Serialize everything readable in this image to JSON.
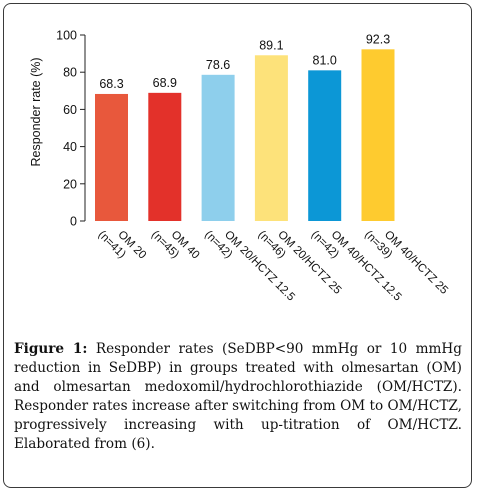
{
  "chart_data": {
    "type": "bar",
    "categories": [
      [
        "OM 20",
        "(n=41)"
      ],
      [
        "OM 40",
        "(n=45)"
      ],
      [
        "OM 20/HCTZ 12.5",
        "(n=42)"
      ],
      [
        "OM 20/HCTZ 25",
        "(n=46)"
      ],
      [
        "OM 40/HCTZ 12.5",
        "(n=42)"
      ],
      [
        "OM 40/HCTZ 25",
        "(n=39)"
      ]
    ],
    "values": [
      68.3,
      68.9,
      78.6,
      89.1,
      81.0,
      92.3
    ],
    "value_labels": [
      "68.3",
      "68.9",
      "78.6",
      "89.1",
      "81.0",
      "92.3"
    ],
    "colors": [
      "#e8583c",
      "#e3312a",
      "#8ecfec",
      "#fde27a",
      "#0c97d6",
      "#fecb2f"
    ],
    "ylabel": "Responder rate (%)",
    "ylim": [
      0,
      100
    ],
    "yticks": [
      0,
      20,
      40,
      60,
      80,
      100
    ],
    "grid": false
  },
  "caption": {
    "label": "Figure 1:",
    "text": "Responder rates (SeDBP<90 mmHg or 10 mmHg reduction in SeDBP) in groups treated with olmesartan (OM) and olmesartan medoxomil/hydrochlorothiazide (OM/HCTZ). Responder rates increase after switching from OM to OM/HCTZ, progressively increasing with up-titration of OM/HCTZ. Elaborated from (6)."
  }
}
